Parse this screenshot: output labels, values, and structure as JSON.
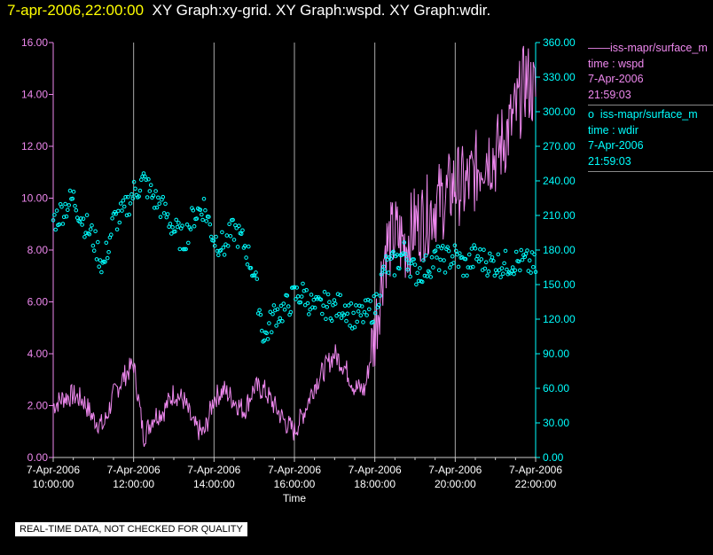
{
  "header": {
    "timestamp": "7-apr-2006,22:00:00",
    "titles": "XY Graph:xy-grid.  XY Graph:wspd.  XY Graph:wdir."
  },
  "legend": {
    "wspd": {
      "marker": "——",
      "label": "iss-mapr/surface_m",
      "field": "time : wspd",
      "date": "7-Apr-2006",
      "time": "21:59:03"
    },
    "wdir": {
      "marker": "o",
      "label": "iss-mapr/surface_m",
      "field": "time : wdir",
      "date": "7-Apr-2006",
      "time": "21:59:03"
    }
  },
  "footer": "REAL-TIME DATA, NOT CHECKED FOR QUALITY",
  "chart_data": {
    "type": "line",
    "xlabel": "Time",
    "x_ticks": [
      {
        "date": "7-Apr-2006",
        "time": "10:00:00"
      },
      {
        "date": "7-Apr-2006",
        "time": "12:00:00"
      },
      {
        "date": "7-Apr-2006",
        "time": "14:00:00"
      },
      {
        "date": "7-Apr-2006",
        "time": "16:00:00"
      },
      {
        "date": "7-Apr-2006",
        "time": "18:00:00"
      },
      {
        "date": "7-Apr-2006",
        "time": "20:00:00"
      },
      {
        "date": "7-Apr-2006",
        "time": "22:00:00"
      }
    ],
    "x_range": [
      "7-Apr-2006 10:00:00",
      "7-Apr-2006 22:00:00"
    ],
    "y_left": {
      "range": [
        0,
        16
      ],
      "ticks": [
        "0.00",
        "2.00",
        "4.00",
        "6.00",
        "8.00",
        "10.00",
        "12.00",
        "14.00",
        "16.00"
      ]
    },
    "y_right": {
      "range": [
        0,
        360
      ],
      "ticks": [
        "0.00",
        "30.00",
        "60.00",
        "90.00",
        "120.00",
        "150.00",
        "180.00",
        "210.00",
        "240.00",
        "270.00",
        "300.00",
        "330.00",
        "360.00"
      ]
    },
    "grid": "vertical",
    "legend_position": "right",
    "colors": {
      "wspd": "#ee88ee",
      "wdir": "#00ffff",
      "grid": "#aaaaaa",
      "footer_bg": "#ffffff",
      "timestamp": "#ffff00"
    },
    "series": [
      {
        "name": "iss-mapr/surface_m time : wspd",
        "axis": "left",
        "style": "line",
        "x_hours": [
          10.0,
          10.25,
          10.5,
          10.75,
          11.0,
          11.25,
          11.5,
          11.75,
          12.0,
          12.25,
          12.5,
          12.75,
          13.0,
          13.25,
          13.5,
          13.75,
          14.0,
          14.25,
          14.5,
          14.75,
          15.0,
          15.25,
          15.5,
          15.75,
          16.0,
          16.25,
          16.5,
          16.75,
          17.0,
          17.25,
          17.5,
          17.75,
          18.0,
          18.25,
          18.5,
          18.75,
          19.0,
          19.25,
          19.5,
          19.75,
          20.0,
          20.25,
          20.5,
          20.75,
          21.0,
          21.25,
          21.5,
          21.75,
          22.0
        ],
        "values": [
          2.0,
          2.3,
          2.4,
          2.2,
          1.5,
          1.2,
          2.4,
          3.1,
          3.6,
          0.8,
          1.6,
          1.8,
          2.5,
          2.2,
          1.2,
          0.9,
          2.3,
          2.6,
          2.2,
          1.8,
          2.7,
          2.6,
          2.0,
          1.4,
          1.0,
          1.8,
          2.8,
          3.4,
          4.0,
          3.5,
          2.7,
          2.6,
          4.8,
          8.0,
          8.6,
          8.2,
          9.0,
          9.2,
          9.8,
          10.0,
          10.6,
          10.4,
          11.0,
          11.8,
          11.6,
          12.4,
          13.2,
          14.6,
          14.0
        ]
      },
      {
        "name": "iss-mapr/surface_m time : wdir",
        "axis": "right",
        "style": "markers",
        "x_hours": [
          10.0,
          10.25,
          10.5,
          10.75,
          11.0,
          11.25,
          11.5,
          11.75,
          12.0,
          12.25,
          12.5,
          12.75,
          13.0,
          13.25,
          13.5,
          13.75,
          14.0,
          14.25,
          14.5,
          14.75,
          15.0,
          15.25,
          15.5,
          15.75,
          16.0,
          16.25,
          16.5,
          16.75,
          17.0,
          17.25,
          17.5,
          17.75,
          18.0,
          18.25,
          18.5,
          18.75,
          19.0,
          19.25,
          19.5,
          19.75,
          20.0,
          20.25,
          20.5,
          20.75,
          21.0,
          21.25,
          21.5,
          21.75,
          22.0
        ],
        "values": [
          205,
          215,
          225,
          205,
          190,
          165,
          205,
          212,
          230,
          240,
          225,
          215,
          198,
          188,
          210,
          218,
          190,
          183,
          198,
          185,
          160,
          102,
          125,
          128,
          140,
          142,
          128,
          132,
          130,
          132,
          120,
          124,
          130,
          165,
          168,
          178,
          160,
          164,
          172,
          172,
          175,
          165,
          175,
          170,
          168,
          168,
          170,
          169,
          165
        ]
      }
    ]
  }
}
